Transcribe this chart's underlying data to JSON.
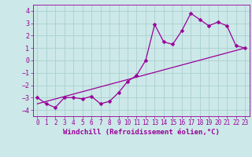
{
  "xlabel": "Windchill (Refroidissement éolien,°C)",
  "ylabel": "",
  "background_color": "#cce8e8",
  "grid_color": "#aad0d0",
  "line_color": "#990099",
  "xlim": [
    -0.5,
    23.5
  ],
  "ylim": [
    -4.5,
    4.5
  ],
  "yticks": [
    -4,
    -3,
    -2,
    -1,
    0,
    1,
    2,
    3,
    4
  ],
  "xticks": [
    0,
    1,
    2,
    3,
    4,
    5,
    6,
    7,
    8,
    9,
    10,
    11,
    12,
    13,
    14,
    15,
    16,
    17,
    18,
    19,
    20,
    21,
    22,
    23
  ],
  "scatter_x": [
    0,
    1,
    2,
    3,
    4,
    5,
    6,
    7,
    8,
    9,
    10,
    11,
    12,
    13,
    14,
    15,
    16,
    17,
    18,
    19,
    20,
    21,
    22,
    23
  ],
  "scatter_y": [
    -3.0,
    -3.5,
    -3.8,
    -3.0,
    -3.0,
    -3.1,
    -2.9,
    -3.5,
    -3.3,
    -2.6,
    -1.7,
    -1.2,
    0.0,
    2.9,
    1.5,
    1.3,
    2.4,
    3.8,
    3.3,
    2.8,
    3.1,
    2.8,
    1.2,
    1.0
  ],
  "trend_x": [
    0,
    23
  ],
  "trend_y": [
    -3.5,
    1.0
  ],
  "tick_fontsize": 5.5,
  "xlabel_fontsize": 6.5,
  "marker_size": 2.5
}
